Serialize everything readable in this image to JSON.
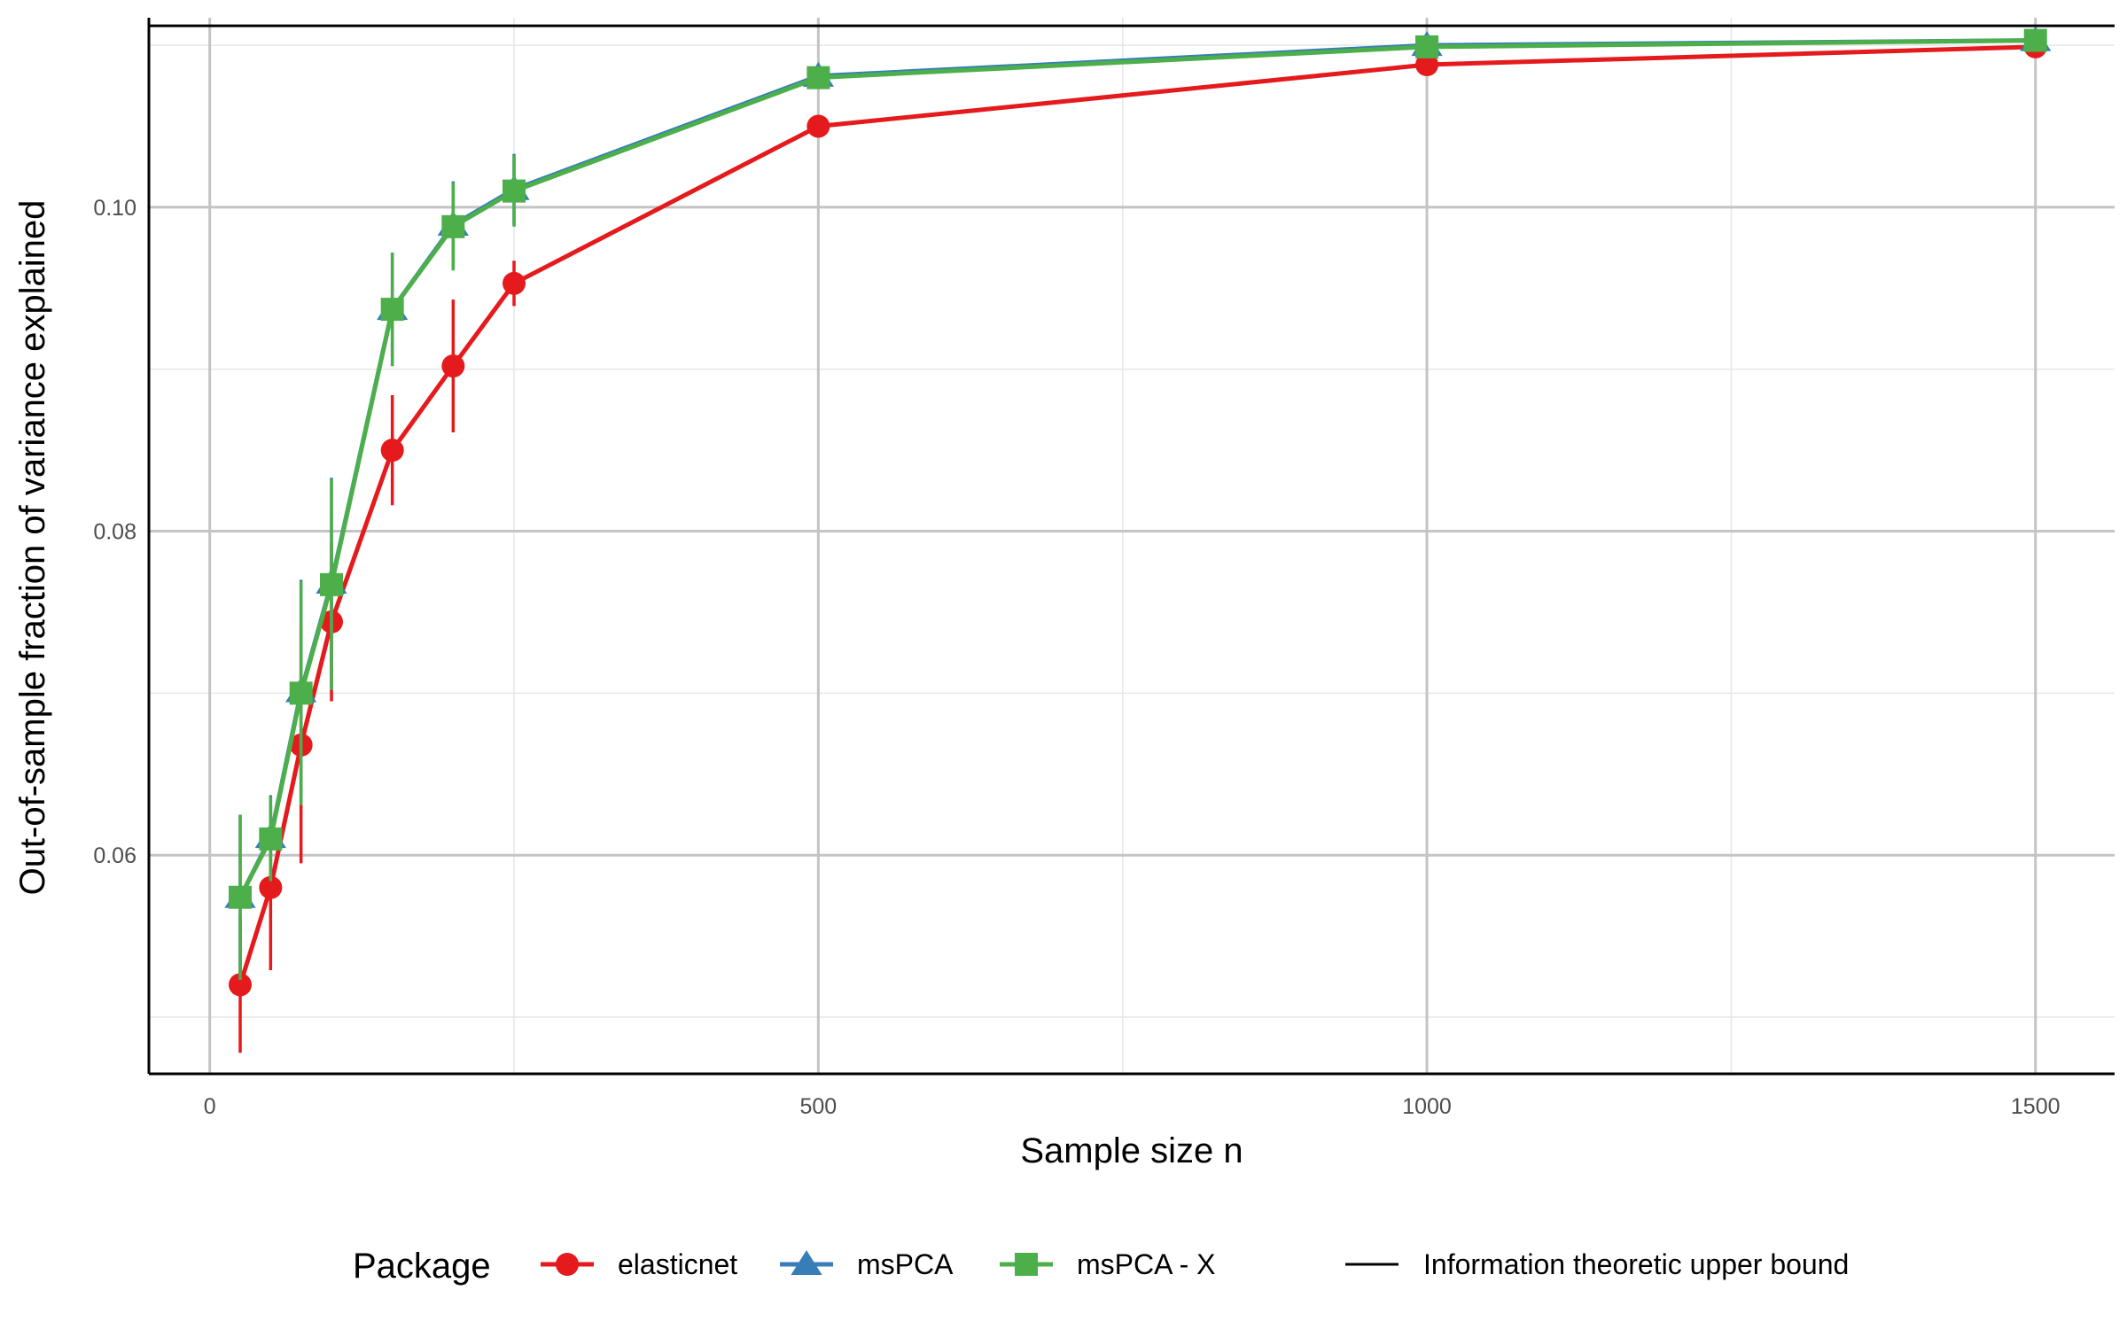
{
  "chart_data": {
    "type": "line",
    "xlabel": "Sample size n",
    "ylabel": "Out-of-sample fraction of variance explained",
    "xlim": [
      -50,
      1565
    ],
    "ylim": [
      0.0465,
      0.1117
    ],
    "x_ticks": [
      0,
      500,
      1000,
      1500
    ],
    "y_ticks": [
      0.06,
      0.08,
      0.1
    ],
    "x_tick_labels": [
      "0",
      "500",
      "1000",
      "1500"
    ],
    "y_tick_labels": [
      "0.06",
      "0.08",
      "0.10"
    ],
    "x_minor_ticks": [
      250,
      750,
      1250
    ],
    "y_minor_ticks": [
      0.05,
      0.07,
      0.09,
      0.11
    ],
    "grid": true,
    "reference_line": {
      "label": "Information theoretic upper bound",
      "y": 0.1112,
      "color": "#000000"
    },
    "legend": {
      "title": "Package",
      "position": "bottom"
    },
    "series": [
      {
        "name": "elasticnet",
        "color": "#E41A1C",
        "marker": "circle",
        "x": [
          25,
          50,
          75,
          100,
          150,
          200,
          250,
          500,
          1000,
          1500
        ],
        "y": [
          0.052,
          0.058,
          0.0668,
          0.0744,
          0.085,
          0.0902,
          0.0953,
          0.105,
          0.1088,
          0.1099
        ],
        "lower": [
          0.0478,
          0.0529,
          0.0595,
          0.0695,
          0.0816,
          0.0861,
          0.0939,
          0.1045,
          0.1085,
          0.1096
        ],
        "upper": [
          0.0562,
          0.0631,
          0.0741,
          0.0793,
          0.0884,
          0.0943,
          0.0967,
          0.1055,
          0.1091,
          0.1102
        ]
      },
      {
        "name": "msPCA",
        "color": "#377EB8",
        "marker": "triangle",
        "x": [
          25,
          50,
          75,
          100,
          150,
          200,
          250,
          500,
          1000,
          1500
        ],
        "y": [
          0.0574,
          0.0611,
          0.0701,
          0.0768,
          0.0937,
          0.0989,
          0.1011,
          0.1081,
          0.11,
          0.1103
        ],
        "lower": [
          0.0523,
          0.0585,
          0.0632,
          0.0703,
          0.0902,
          0.0962,
          0.0989,
          0.1077,
          0.1097,
          0.11
        ],
        "upper": [
          0.0625,
          0.0637,
          0.077,
          0.0833,
          0.0972,
          0.1016,
          0.1033,
          0.1085,
          0.1103,
          0.1106
        ]
      },
      {
        "name": "msPCA - X",
        "color": "#4DAF4A",
        "marker": "square",
        "x": [
          25,
          50,
          75,
          100,
          150,
          200,
          250,
          500,
          1000,
          1500
        ],
        "y": [
          0.0574,
          0.061,
          0.07,
          0.0767,
          0.0937,
          0.0988,
          0.101,
          0.108,
          0.1099,
          0.1103
        ],
        "lower": [
          0.0523,
          0.0584,
          0.0631,
          0.0702,
          0.0902,
          0.0961,
          0.0988,
          0.1076,
          0.1096,
          0.11
        ],
        "upper": [
          0.0625,
          0.0636,
          0.0769,
          0.0832,
          0.0972,
          0.1015,
          0.1032,
          0.1084,
          0.1102,
          0.1106
        ]
      }
    ]
  }
}
